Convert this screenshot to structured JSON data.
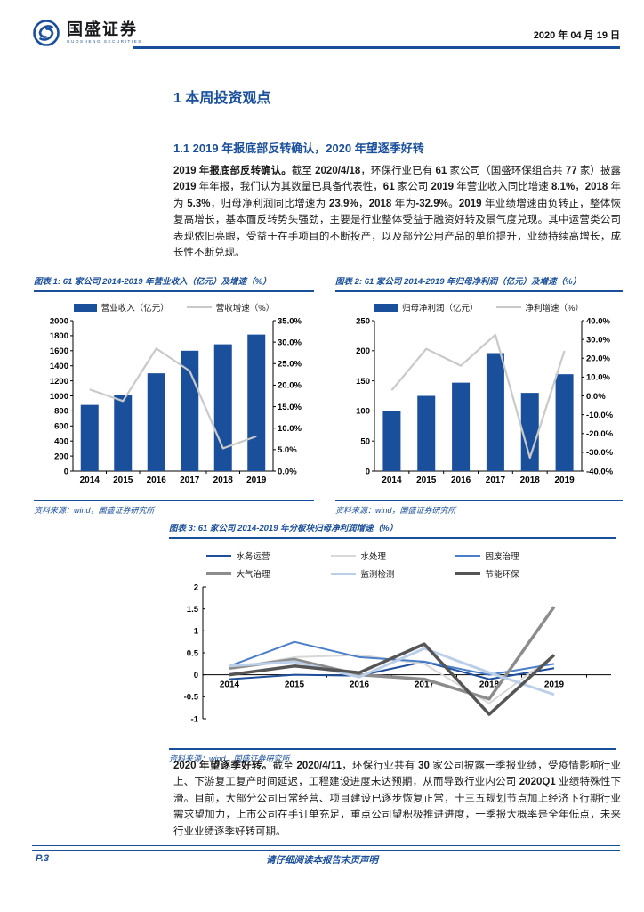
{
  "accent_color": "#1A4F9C",
  "header": {
    "brand": "国盛证券",
    "brand_sub": "GUOSHENG SECURITIES",
    "date": "2020 年 04 月 19 日"
  },
  "section": {
    "title": "1 本周投资观点"
  },
  "subsection": {
    "title": "1.1 2019 年报底部反转确认，2020 年望逐季好转"
  },
  "paragraphs": {
    "p1_lead": "2019 年报底部反转确认。",
    "p1_body": "截至 2020/4/18，环保行业已有 61 家公司（国盛环保组合共 77 家）披露 2019 年年报，我们认为其数量已具备代表性，61 家公司 2019 年营业收入同比增速 8.1%，2018 年为 5.3%，归母净利润同比增速为 23.9%，2018 年为-32.9%。2019 年业绩增速由负转正，整体恢复高增长，基本面反转势头强劲，主要是行业整体受益于融资好转及景气度兑现。其中运营类公司表现依旧亮眼，受益于在手项目的不断投产，以及部分公用产品的单价提升，业绩持续高增长，成长性不断兑现。",
    "p2_lead": "2020 年望逐季好转。",
    "p2_body": "截至 2020/4/11，环保行业共有 30 家公司披露一季报业绩，受疫情影响行业上、下游复工复产时间延迟，工程建设进度未达预期，从而导致行业内公司 2020Q1 业绩特殊性下滑。目前，大部分公司日常经营、项目建设已逐步恢复正常，十三五规划节点加上经济下行期行业需求望加力，上市公司在手订单充足，重点公司望积极推进进度，一季报大概率是全年低点，未来行业业绩逐季好转可期。"
  },
  "chart_data": [
    {
      "type": "bar",
      "subtype": "combo_bar_line",
      "caption": "图表 1: 61 家公司 2014-2019 年营业收入（亿元）及增速（%）",
      "source": "资料来源：wind，国盛证券研究所",
      "categories": [
        "2014",
        "2015",
        "2016",
        "2017",
        "2018",
        "2019"
      ],
      "bar": {
        "name": "营业收入（亿元）",
        "color": "#1A4F9C",
        "values": [
          880,
          1010,
          1300,
          1600,
          1685,
          1815
        ]
      },
      "line": {
        "name": "营收增速（%）",
        "color": "#C9C9C9",
        "values": [
          19.0,
          16.3,
          28.5,
          23.3,
          5.3,
          8.1
        ]
      },
      "left_axis": {
        "min": 0,
        "max": 2000,
        "step": 200
      },
      "right_axis": {
        "min": 0,
        "max": 35,
        "step": 5,
        "suffix": "%",
        "decimals": 1
      },
      "grid": false,
      "legend_position": "top"
    },
    {
      "type": "bar",
      "subtype": "combo_bar_line",
      "caption": "图表 2: 61 家公司 2014-2019 年归母净利润（亿元）及增速（%）",
      "source": "资料来源：wind，国盛证券研究所",
      "categories": [
        "2014",
        "2015",
        "2016",
        "2017",
        "2018",
        "2019"
      ],
      "bar": {
        "name": "归母净利润（亿元）",
        "color": "#1A4F9C",
        "values": [
          100,
          125,
          147,
          196,
          130,
          161
        ]
      },
      "line": {
        "name": "净利增速（%）",
        "color": "#C9C9C9",
        "values": [
          3.0,
          25.0,
          16.0,
          32.5,
          -32.9,
          23.9
        ]
      },
      "left_axis": {
        "min": 0,
        "max": 250,
        "step": 50
      },
      "right_axis": {
        "min": -40,
        "max": 40,
        "step": 10,
        "suffix": "%",
        "decimals": 1
      },
      "grid": false,
      "legend_position": "top"
    },
    {
      "type": "line",
      "caption": "图表 3: 61 家公司 2014-2019 年分板块归母净利润增速（%）",
      "source": "资料来源：wind，国盛证券研究所",
      "categories": [
        "2014",
        "2015",
        "2016",
        "2017",
        "2018",
        "2019"
      ],
      "series": [
        {
          "name": "水务运营",
          "color": "#1F4E9B",
          "width": 2,
          "values": [
            -0.1,
            0.0,
            -0.02,
            0.3,
            -0.1,
            0.15
          ]
        },
        {
          "name": "水处理",
          "color": "#D8D8D8",
          "width": 2,
          "values": [
            0.15,
            0.4,
            0.45,
            0.25,
            -0.65,
            0.45
          ]
        },
        {
          "name": "固废治理",
          "color": "#4A7EC8",
          "width": 2,
          "values": [
            0.2,
            0.75,
            0.4,
            0.3,
            0.0,
            0.25
          ]
        },
        {
          "name": "大气治理",
          "color": "#8C8C8C",
          "width": 3.5,
          "values": [
            0.15,
            0.35,
            0.0,
            -0.1,
            -0.55,
            1.55
          ]
        },
        {
          "name": "监测检测",
          "color": "#BCCFE8",
          "width": 3,
          "values": [
            0.2,
            0.3,
            -0.05,
            0.6,
            0.05,
            -0.45
          ]
        },
        {
          "name": "节能环保",
          "color": "#555555",
          "width": 3.5,
          "values": [
            0.0,
            0.2,
            0.05,
            0.7,
            -0.9,
            0.45
          ]
        }
      ],
      "y_axis": {
        "min": -1,
        "max": 2,
        "step": 0.5
      },
      "grid": false,
      "legend_position": "top"
    }
  ],
  "footer": {
    "page_number": "P.3",
    "disclaimer": "请仔细阅读本报告末页声明"
  }
}
